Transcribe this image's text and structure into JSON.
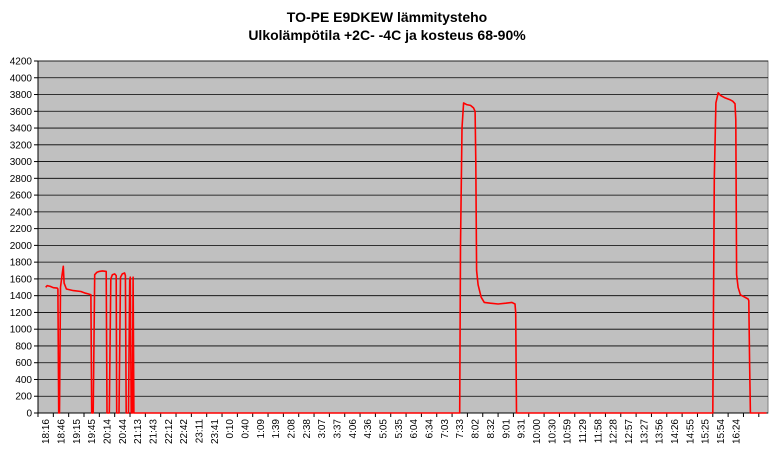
{
  "chart_data": {
    "type": "line",
    "title": "TO-PE E9DKEW lämmitysteho",
    "subtitle": "Ulkolämpötila +2C- -4C ja kosteus 68-90%",
    "xlabel": "",
    "ylabel": "",
    "ylim": [
      0,
      4200
    ],
    "ystep": 200,
    "grid": true,
    "legend": "none",
    "line_color": "#ff0000",
    "plot_bg": "#c0c0c0",
    "x_ticks": [
      "18:16",
      "18:46",
      "19:15",
      "19:45",
      "20:14",
      "20:44",
      "21:13",
      "21:43",
      "22:12",
      "22:42",
      "23:11",
      "23:41",
      "0:10",
      "0:40",
      "1:09",
      "1:39",
      "2:08",
      "2:38",
      "3:07",
      "3:37",
      "4:06",
      "4:36",
      "5:05",
      "5:35",
      "6:04",
      "6:34",
      "7:03",
      "7:33",
      "8:02",
      "8:32",
      "9:01",
      "9:31",
      "10:00",
      "10:30",
      "10:59",
      "11:29",
      "11:58",
      "12:28",
      "12:57",
      "13:27",
      "13:56",
      "14:26",
      "14:55",
      "15:25",
      "15:54",
      "16:24"
    ],
    "series": [
      {
        "points": [
          [
            0,
            1500
          ],
          [
            0.1,
            1520
          ],
          [
            0.3,
            1510
          ],
          [
            0.5,
            1495
          ],
          [
            0.75,
            1490
          ],
          [
            0.8,
            1480
          ],
          [
            0.85,
            0
          ],
          [
            0.9,
            0
          ],
          [
            0.97,
            1500
          ],
          [
            1.07,
            1650
          ],
          [
            1.15,
            1750
          ],
          [
            1.2,
            1550
          ],
          [
            1.35,
            1480
          ],
          [
            1.8,
            1460
          ],
          [
            2.3,
            1450
          ],
          [
            2.6,
            1430
          ],
          [
            2.8,
            1420
          ],
          [
            2.95,
            1410
          ],
          [
            3.0,
            0
          ],
          [
            3.1,
            0
          ],
          [
            3.2,
            1650
          ],
          [
            3.35,
            1680
          ],
          [
            3.5,
            1690
          ],
          [
            3.7,
            1695
          ],
          [
            3.95,
            1690
          ],
          [
            4.0,
            0
          ],
          [
            4.15,
            0
          ],
          [
            4.25,
            1600
          ],
          [
            4.35,
            1650
          ],
          [
            4.5,
            1660
          ],
          [
            4.6,
            1640
          ],
          [
            4.63,
            0
          ],
          [
            4.78,
            0
          ],
          [
            4.88,
            1620
          ],
          [
            5.0,
            1660
          ],
          [
            5.15,
            1670
          ],
          [
            5.2,
            1640
          ],
          [
            5.25,
            0
          ],
          [
            5.4,
            0
          ],
          [
            5.48,
            1580
          ],
          [
            5.52,
            1620
          ],
          [
            5.58,
            0
          ],
          [
            5.65,
            0
          ],
          [
            5.7,
            1620
          ],
          [
            5.75,
            0
          ],
          [
            27.0,
            0
          ],
          [
            27.05,
            2000
          ],
          [
            27.15,
            3400
          ],
          [
            27.25,
            3700
          ],
          [
            27.45,
            3680
          ],
          [
            27.7,
            3670
          ],
          [
            27.9,
            3640
          ],
          [
            28.0,
            3600
          ],
          [
            28.05,
            3000
          ],
          [
            28.1,
            1700
          ],
          [
            28.2,
            1530
          ],
          [
            28.4,
            1380
          ],
          [
            28.6,
            1320
          ],
          [
            29.0,
            1310
          ],
          [
            29.5,
            1300
          ],
          [
            30.0,
            1310
          ],
          [
            30.4,
            1320
          ],
          [
            30.6,
            1300
          ],
          [
            30.65,
            1200
          ],
          [
            30.7,
            0
          ],
          [
            43.5,
            0
          ],
          [
            43.6,
            2800
          ],
          [
            43.7,
            3700
          ],
          [
            43.85,
            3820
          ],
          [
            44.0,
            3790
          ],
          [
            44.3,
            3760
          ],
          [
            44.6,
            3740
          ],
          [
            44.8,
            3720
          ],
          [
            44.95,
            3690
          ],
          [
            45.0,
            3500
          ],
          [
            45.05,
            1650
          ],
          [
            45.15,
            1500
          ],
          [
            45.3,
            1410
          ],
          [
            45.6,
            1380
          ],
          [
            45.8,
            1360
          ],
          [
            45.85,
            1340
          ],
          [
            45.9,
            600
          ],
          [
            45.95,
            0
          ],
          [
            47.0,
            0
          ]
        ]
      }
    ]
  }
}
